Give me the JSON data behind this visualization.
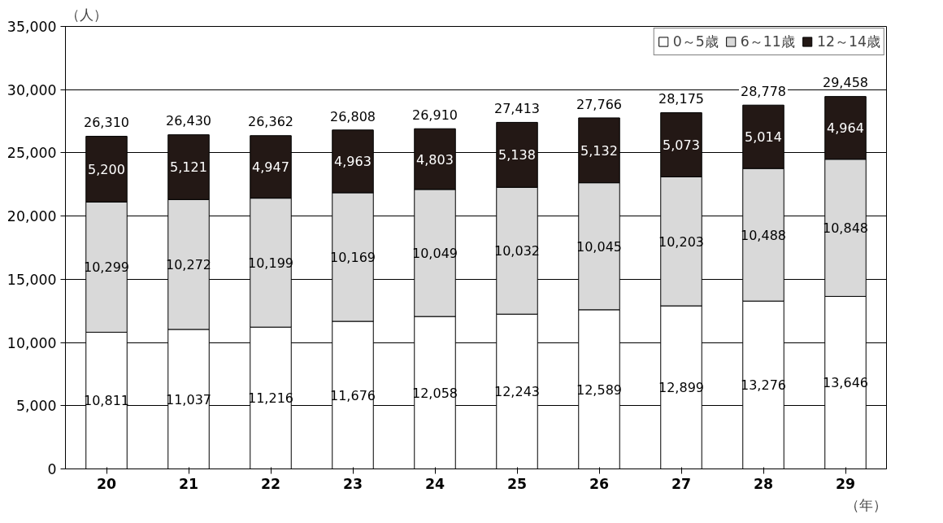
{
  "chart_data": {
    "type": "bar",
    "stacked": true,
    "ylabel": "（人）",
    "xlabel": "（年）",
    "categories": [
      "20",
      "21",
      "22",
      "23",
      "24",
      "25",
      "26",
      "27",
      "28",
      "29"
    ],
    "series": [
      {
        "name": "0～5歳",
        "color": "#ffffff",
        "values": [
          10811,
          11037,
          11216,
          11676,
          12058,
          12243,
          12589,
          12899,
          13276,
          13646
        ],
        "value_labels": [
          "10,811",
          "11,037",
          "11,216",
          "11,676",
          "12,058",
          "12,243",
          "12,589",
          "12,899",
          "13,276",
          "13,646"
        ]
      },
      {
        "name": "6～11歳",
        "color": "#d9d9d9",
        "values": [
          10299,
          10272,
          10199,
          10169,
          10049,
          10032,
          10045,
          10203,
          10488,
          10848
        ],
        "value_labels": [
          "10,299",
          "10,272",
          "10,199",
          "10,169",
          "10,049",
          "10,032",
          "10,045",
          "10,203",
          "10,488",
          "10,848"
        ]
      },
      {
        "name": "12～14歳",
        "color": "#231815",
        "values": [
          5200,
          5121,
          4947,
          4963,
          4803,
          5138,
          5132,
          5073,
          5014,
          4964
        ],
        "value_labels": [
          "5,200",
          "5,121",
          "4,947",
          "4,963",
          "4,803",
          "5,138",
          "5,132",
          "5,073",
          "5,014",
          "4,964"
        ]
      }
    ],
    "totals": [
      "26,310",
      "26,430",
      "26,362",
      "26,808",
      "26,910",
      "27,413",
      "27,766",
      "28,175",
      "28,778",
      "29,458"
    ],
    "ylim": [
      0,
      35000
    ],
    "yticks": [
      0,
      {
        "value": 5000,
        "label": "5,000"
      },
      {
        "value": 10000,
        "label": "10,000"
      },
      {
        "value": 15000,
        "label": "15,000"
      },
      {
        "value": 20000,
        "label": "20,000"
      },
      {
        "value": 25000,
        "label": "25,000"
      },
      {
        "value": 30000,
        "label": "30,000"
      },
      {
        "value": 35000,
        "label": "35,000"
      }
    ],
    "grid": "y",
    "legend": "top right"
  }
}
